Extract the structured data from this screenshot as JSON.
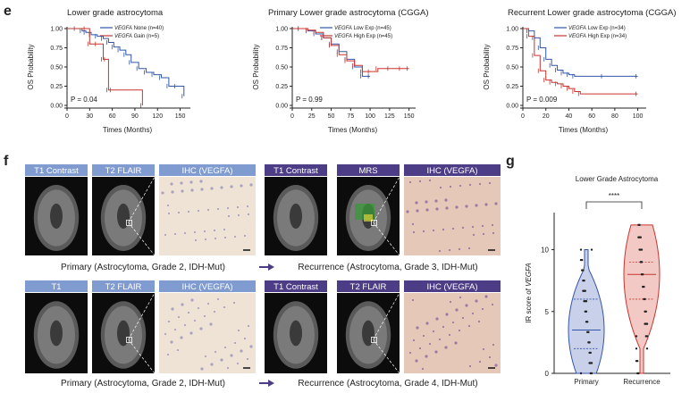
{
  "panels": {
    "e": "e",
    "f": "f",
    "g": "g"
  },
  "km_plots": [
    {
      "title": "Lower grade astrocytoma",
      "legend": [
        {
          "italic": "VEGFA",
          "rest": " None (n=40)",
          "color": "#3355a8"
        },
        {
          "italic": "VEGFA",
          "rest": " Gain (n=5)",
          "color": "#c8342e"
        }
      ],
      "p_value": "P = 0.04",
      "ylabel": "OS Probability",
      "xlabel": "Times (Months)",
      "xticks": [
        "0",
        "30",
        "60",
        "90",
        "120",
        "150"
      ],
      "yticks": [
        "0.00",
        "0.25",
        "0.50",
        "0.75",
        "1.00"
      ]
    },
    {
      "title": "Primary  Lower grade astrocytoma (CGGA)",
      "legend": [
        {
          "italic": "VEGFA",
          "rest": " Low Exp (n=45)",
          "color": "#3355a8"
        },
        {
          "italic": "VEGFA",
          "rest": " High Exp (n=45)",
          "color": "#c8342e"
        }
      ],
      "p_value": "P = 0.99",
      "ylabel": "OS Probability",
      "xlabel": "Times (Months)",
      "xticks": [
        "0",
        "25",
        "50",
        "75",
        "100",
        "125",
        "150"
      ],
      "yticks": [
        "0.00",
        "0.25",
        "0.50",
        "0.75",
        "1.00"
      ]
    },
    {
      "title": "Recurrent Lower grade astrocytoma (CGGA)",
      "legend": [
        {
          "italic": "VEGFA",
          "rest": " Low Exp (n=34)",
          "color": "#3355a8"
        },
        {
          "italic": "VEGFA",
          "rest": " High Exp (n=34)",
          "color": "#c8342e"
        }
      ],
      "p_value": "P = 0.009",
      "ylabel": "OS Probability",
      "xlabel": "Times (Months)",
      "xticks": [
        "0",
        "20",
        "40",
        "60",
        "80",
        "100"
      ],
      "yticks": [
        "0.00",
        "0.25",
        "0.50",
        "0.75",
        "1.00"
      ]
    }
  ],
  "imaging": {
    "row1_headers": [
      {
        "label": "T1 Contrast",
        "color": "#7f9bd0"
      },
      {
        "label": "T2 FLAIR",
        "color": "#7f9bd0"
      },
      {
        "label": "IHC (VEGFA)",
        "color": "#7f9bd0"
      },
      {
        "label": "T1 Contrast",
        "color": "#4d3d86"
      },
      {
        "label": "MRS",
        "color": "#4d3d86"
      },
      {
        "label": "IHC (VEGFA)",
        "color": "#4d3d86"
      }
    ],
    "row2_headers": [
      {
        "label": "T1",
        "color": "#7f9bd0"
      },
      {
        "label": "T2 FLAIR",
        "color": "#7f9bd0"
      },
      {
        "label": "IHC (VEGFA)",
        "color": "#7f9bd0"
      },
      {
        "label": "T1 Contrast",
        "color": "#4d3d86"
      },
      {
        "label": "T2 FLAIR",
        "color": "#4d3d86"
      },
      {
        "label": "IHC (VEGFA)",
        "color": "#4d3d86"
      }
    ],
    "row1_caption_left": "Primary (Astrocytoma, Grade 2, IDH-Mut)",
    "row1_caption_right": "Recurrence (Astrocytoma, Grade 3, IDH-Mut)",
    "row2_caption_left": "Primary (Astrocytoma, Grade 2, IDH-Mut)",
    "row2_caption_right": "Recurrence (Astrocytoma, Grade 4, IDH-Mut)"
  },
  "chart_data": [
    {
      "type": "line",
      "title": "Lower grade astrocytoma",
      "xlabel": "Times (Months)",
      "ylabel": "OS Probability",
      "xlim": [
        0,
        160
      ],
      "ylim": [
        0,
        1
      ],
      "series": [
        {
          "name": "VEGFA None (n=40)",
          "x": [
            0,
            12,
            20,
            25,
            32,
            40,
            48,
            55,
            62,
            70,
            78,
            85,
            95,
            105,
            115,
            125,
            135,
            145,
            155
          ],
          "y": [
            1.0,
            1.0,
            0.97,
            0.95,
            0.92,
            0.9,
            0.87,
            0.82,
            0.76,
            0.72,
            0.66,
            0.56,
            0.48,
            0.43,
            0.4,
            0.36,
            0.25,
            0.25,
            0.12
          ]
        },
        {
          "name": "VEGFA Gain (n=5)",
          "x": [
            0,
            25,
            30,
            40,
            48,
            52,
            55,
            60,
            100
          ],
          "y": [
            1.0,
            1.0,
            0.8,
            0.8,
            0.6,
            0.6,
            0.2,
            0.2,
            0.0
          ]
        }
      ],
      "annotation": "P = 0.04"
    },
    {
      "type": "line",
      "title": "Primary  Lower grade astrocytoma (CGGA)",
      "xlabel": "Times (Months)",
      "ylabel": "OS Probability",
      "xlim": [
        0,
        155
      ],
      "ylim": [
        0,
        1
      ],
      "series": [
        {
          "name": "VEGFA Low Exp (n=45)",
          "x": [
            0,
            10,
            20,
            30,
            40,
            50,
            60,
            70,
            80,
            90,
            100
          ],
          "y": [
            1.0,
            1.0,
            0.97,
            0.93,
            0.88,
            0.8,
            0.7,
            0.6,
            0.5,
            0.38,
            0.38
          ]
        },
        {
          "name": "VEGFA High Exp (n=45)",
          "x": [
            0,
            10,
            20,
            30,
            40,
            50,
            60,
            70,
            80,
            90,
            100,
            110,
            125,
            140,
            150
          ],
          "y": [
            1.0,
            1.0,
            0.98,
            0.95,
            0.88,
            0.78,
            0.66,
            0.58,
            0.52,
            0.44,
            0.44,
            0.48,
            0.48,
            0.48,
            0.48
          ]
        }
      ],
      "annotation": "P = 0.99"
    },
    {
      "type": "line",
      "title": "Recurrent Lower grade astrocytoma (CGGA)",
      "xlabel": "Times (Months)",
      "ylabel": "OS Probability",
      "xlim": [
        0,
        105
      ],
      "ylim": [
        0,
        1
      ],
      "series": [
        {
          "name": "VEGFA Low Exp (n=34)",
          "x": [
            0,
            5,
            10,
            15,
            20,
            25,
            30,
            35,
            40,
            45,
            70,
            100
          ],
          "y": [
            1.0,
            0.97,
            0.88,
            0.75,
            0.6,
            0.52,
            0.46,
            0.42,
            0.4,
            0.38,
            0.38,
            0.38
          ]
        },
        {
          "name": "VEGFA High Exp (n=34)",
          "x": [
            0,
            5,
            10,
            15,
            20,
            25,
            30,
            35,
            40,
            45,
            50,
            100
          ],
          "y": [
            1.0,
            0.9,
            0.65,
            0.45,
            0.33,
            0.3,
            0.28,
            0.25,
            0.22,
            0.18,
            0.15,
            0.15
          ]
        }
      ],
      "annotation": "P = 0.009"
    },
    {
      "type": "violin",
      "title": "Lower Grade Astrocytoma",
      "ylabel": "IR score of VEGFA",
      "categories": [
        "Primary",
        "Recurrence"
      ],
      "ylim": [
        0,
        13
      ],
      "yticks": [
        "0",
        "5",
        "10"
      ],
      "significance": "****",
      "colors": [
        "#3355a8",
        "#c8342e"
      ],
      "medians": [
        3.5,
        8
      ],
      "quartiles": [
        [
          2,
          6
        ],
        [
          6,
          9
        ]
      ],
      "ranges": [
        [
          0,
          10
        ],
        [
          0,
          12
        ]
      ]
    }
  ]
}
